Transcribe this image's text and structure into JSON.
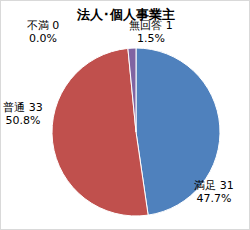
{
  "chart_data": {
    "type": "pie",
    "title": "法人･個人事業主",
    "categories": [
      "満足",
      "普通",
      "不満",
      "無回答"
    ],
    "values": [
      31,
      33,
      0,
      1
    ],
    "value_labels": [
      "31\n47.7%",
      "33\n50.8%",
      "0\n0.0%",
      "1\n1.5%"
    ],
    "colors": [
      "#4f81bd",
      "#c0504d",
      "#9bbb59",
      "#8064a2"
    ],
    "data_labels": true
  }
}
